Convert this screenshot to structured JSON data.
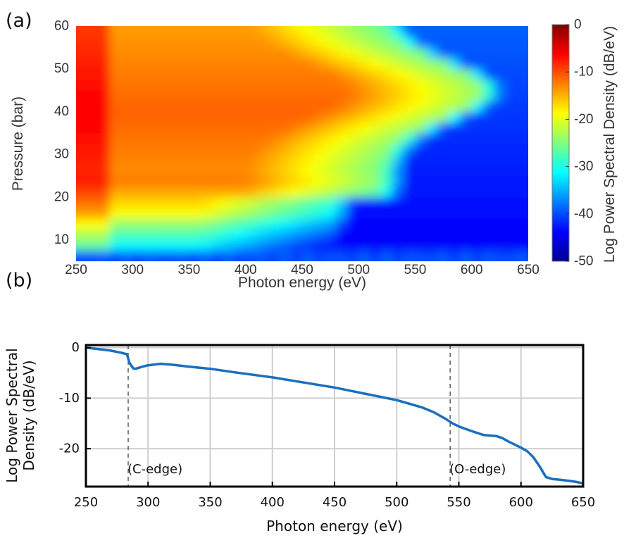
{
  "chart_data": [
    {
      "panel": "(a)",
      "type": "heatmap",
      "xlabel": "Photon energy (eV)",
      "ylabel": "Pressure (bar)",
      "xlim": [
        250,
        650
      ],
      "ylim": [
        5,
        60
      ],
      "xticks": [
        250,
        300,
        350,
        400,
        450,
        500,
        550,
        600,
        650
      ],
      "yticks": [
        10,
        20,
        30,
        40,
        50,
        60
      ],
      "colormap": "jet",
      "colorbar": {
        "label": "Log Power Spectral Density (dB/eV)",
        "range": [
          -50,
          0
        ],
        "ticks": [
          0,
          -10,
          -20,
          -30,
          -40,
          -50
        ]
      },
      "grid": false
    },
    {
      "panel": "(b)",
      "type": "line",
      "xlabel": "Photon energy (eV)",
      "ylabel_line1": "Log Power Spectral",
      "ylabel_line2": "Density (dB/eV)",
      "xlim": [
        250,
        650
      ],
      "ylim": [
        -27.5,
        0.5
      ],
      "xticks": [
        250,
        300,
        350,
        400,
        450,
        500,
        550,
        600,
        650
      ],
      "yticks": [
        0,
        -10,
        -20
      ],
      "grid": true,
      "line_color": "#1a6fbf",
      "x": [
        250,
        260,
        270,
        278,
        283,
        285,
        288,
        290,
        295,
        300,
        310,
        320,
        330,
        350,
        370,
        400,
        420,
        450,
        470,
        500,
        520,
        530,
        540,
        545,
        550,
        560,
        570,
        580,
        585,
        590,
        600,
        605,
        610,
        615,
        620,
        625,
        630,
        640,
        645,
        650
      ],
      "y": [
        0,
        -0.3,
        -0.6,
        -1.0,
        -1.3,
        -3.0,
        -4.1,
        -4.2,
        -3.8,
        -3.5,
        -3.2,
        -3.4,
        -3.7,
        -4.2,
        -4.9,
        -5.9,
        -6.7,
        -7.9,
        -8.9,
        -10.4,
        -11.8,
        -12.8,
        -14.2,
        -15.0,
        -15.6,
        -16.5,
        -17.3,
        -17.5,
        -17.9,
        -18.6,
        -19.8,
        -20.5,
        -21.7,
        -23.5,
        -25.6,
        -26.0,
        -26.1,
        -26.4,
        -26.6,
        -26.9
      ],
      "vlines": [
        {
          "x": 284,
          "label": "(C-edge)"
        },
        {
          "x": 543,
          "label": "(O-edge)"
        }
      ]
    }
  ]
}
